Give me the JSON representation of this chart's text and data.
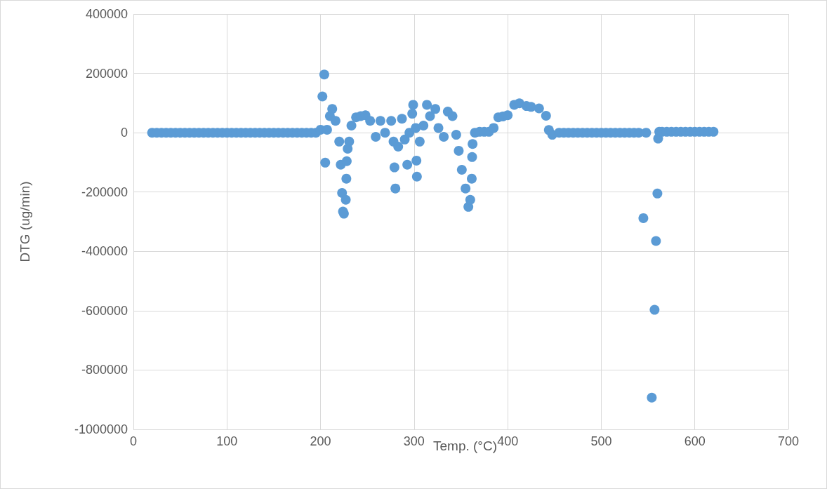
{
  "chart_data": {
    "type": "scatter",
    "xlabel": "Temp. (°C)",
    "ylabel": "DTG (ug/min)",
    "series": [
      {
        "color": "#5b9bd5",
        "x": [
          20,
          25,
          30,
          35,
          40,
          45,
          50,
          55,
          60,
          65,
          70,
          75,
          80,
          85,
          90,
          95,
          100,
          105,
          110,
          115,
          120,
          125,
          130,
          135,
          140,
          145,
          150,
          155,
          160,
          165,
          170,
          175,
          180,
          185,
          190,
          195,
          200,
          202,
          204,
          205,
          207,
          210,
          212.5,
          216,
          220,
          221.6,
          223,
          224,
          225,
          227,
          227.6,
          228,
          229,
          230.6,
          233,
          238,
          243,
          248,
          253,
          259,
          264,
          269,
          275.5,
          278,
          279,
          280,
          283,
          287,
          290,
          292.7,
          295,
          298,
          299,
          301.7,
          302.5,
          303,
          306,
          310,
          313.7,
          317,
          322.7,
          326,
          331.7,
          336,
          341,
          345,
          347.7,
          351,
          355,
          358,
          360,
          361.6,
          362,
          362.5,
          365,
          370,
          375,
          380,
          385,
          390,
          395,
          400,
          407,
          412.5,
          420,
          425,
          433.5,
          441,
          444,
          447.7,
          455,
          460,
          465,
          470,
          475,
          480,
          485,
          490,
          495,
          500,
          505,
          510,
          515,
          520,
          525,
          530,
          535,
          540,
          545,
          548,
          554,
          557,
          558.5,
          560,
          560.8,
          562,
          565,
          570,
          575,
          580,
          585,
          590,
          595,
          600,
          605,
          610,
          615,
          620
        ],
        "values": [
          0,
          0,
          0,
          0,
          0,
          0,
          0,
          0,
          0,
          0,
          0,
          0,
          0,
          0,
          0,
          0,
          0,
          0,
          0,
          0,
          0,
          0,
          0,
          0,
          0,
          0,
          0,
          0,
          0,
          0,
          0,
          0,
          0,
          0,
          0,
          0,
          10000,
          122000,
          196000,
          -101000,
          10000,
          56000,
          80000,
          40000,
          -30000,
          -108000,
          -203000,
          -266000,
          -273000,
          -226000,
          -155000,
          -96000,
          -54000,
          -30000,
          24000,
          52000,
          56000,
          59000,
          40000,
          -14000,
          40000,
          0,
          40000,
          -30000,
          -117000,
          -188000,
          -47000,
          47000,
          -23000,
          -108000,
          0,
          64000,
          94000,
          16000,
          -94000,
          -148000,
          -30000,
          24000,
          94000,
          56000,
          80000,
          16000,
          -14000,
          71000,
          56000,
          -7000,
          -61000,
          -125000,
          -188000,
          -250000,
          -226000,
          -155000,
          -82000,
          -38000,
          0,
          3000,
          3000,
          3000,
          16000,
          52000,
          55000,
          59000,
          94000,
          99000,
          90000,
          87000,
          82000,
          57000,
          9000,
          -7000,
          0,
          0,
          0,
          0,
          0,
          0,
          0,
          0,
          0,
          0,
          0,
          0,
          0,
          0,
          0,
          0,
          0,
          0,
          -288000,
          0,
          -893000,
          -597000,
          -365000,
          -205000,
          -20000,
          3000,
          3000,
          3000,
          3000,
          3000,
          3000,
          3000,
          3000,
          3000,
          3000,
          3000,
          3000,
          3000
        ]
      }
    ],
    "xlim": [
      0,
      700
    ],
    "xticks": [
      0,
      100,
      200,
      300,
      400,
      500,
      600,
      700
    ],
    "ylim": [
      -1000000,
      400000
    ],
    "yticks": [
      -1000000,
      -800000,
      -600000,
      -400000,
      -200000,
      0,
      200000,
      400000
    ],
    "grid": true,
    "marker": "circle"
  }
}
